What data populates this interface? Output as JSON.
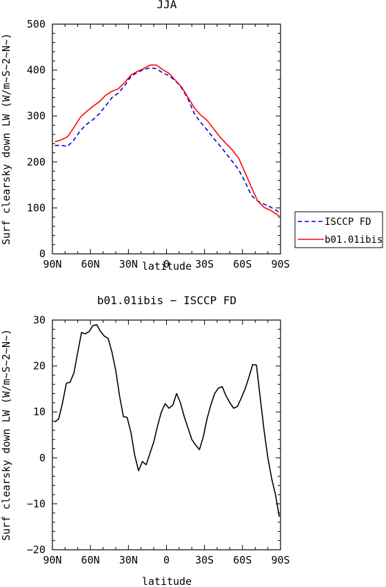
{
  "chart_data": [
    {
      "type": "line",
      "title": "JJA",
      "xlabel": "latitude",
      "ylabel": "Surf clearsky down LW (W/m~S~2~N~)",
      "xlim": [
        90,
        -90
      ],
      "ylim": [
        0,
        500
      ],
      "x_ticks": [
        90,
        60,
        30,
        0,
        -30,
        -60,
        -90
      ],
      "x_tick_labels": [
        "90N",
        "60N",
        "30N",
        "0",
        "30S",
        "60S",
        "90S"
      ],
      "y_ticks": [
        0,
        100,
        200,
        300,
        400,
        500
      ],
      "y_tick_labels": [
        "0",
        "100",
        "200",
        "300",
        "400",
        "500"
      ],
      "legend_position": "outside-right",
      "series": [
        {
          "name": "ISCCP FD",
          "color": "#0000cc",
          "dash": "dashed",
          "x": [
            88,
            83,
            78,
            73,
            68,
            63,
            58,
            53,
            48,
            43,
            38,
            33,
            28,
            23,
            18,
            13,
            8,
            3,
            -2,
            -7,
            -12,
            -17,
            -22,
            -27,
            -32,
            -37,
            -42,
            -47,
            -52,
            -57,
            -62,
            -67,
            -72,
            -77,
            -82,
            -87,
            -89
          ],
          "y": [
            236,
            236,
            234,
            248,
            268,
            282,
            292,
            305,
            322,
            340,
            350,
            366,
            386,
            395,
            401,
            405,
            403,
            394,
            388,
            377,
            361,
            337,
            305,
            286,
            270,
            252,
            236,
            219,
            201,
            183,
            157,
            127,
            115,
            108,
            102,
            94,
            90
          ]
        },
        {
          "name": "b01.01ibis",
          "color": "#ff0000",
          "dash": "solid",
          "x": [
            88,
            83,
            78,
            73,
            68,
            63,
            58,
            53,
            48,
            43,
            38,
            33,
            28,
            23,
            18,
            13,
            8,
            3,
            -2,
            -7,
            -12,
            -17,
            -22,
            -27,
            -32,
            -37,
            -42,
            -47,
            -52,
            -57,
            -62,
            -67,
            -72,
            -77,
            -82,
            -87,
            -89
          ],
          "y": [
            244,
            248,
            255,
            275,
            297,
            310,
            321,
            331,
            345,
            354,
            359,
            373,
            389,
            397,
            403,
            411,
            411,
            401,
            393,
            378,
            363,
            340,
            318,
            302,
            291,
            273,
            255,
            240,
            226,
            208,
            177,
            145,
            115,
            101,
            95,
            86,
            82
          ]
        }
      ]
    },
    {
      "type": "line",
      "title": "b01.01ibis − ISCCP FD",
      "xlabel": "latitude",
      "ylabel": "Surf clearsky down LW (W/m~S~2~N~)",
      "xlim": [
        90,
        -90
      ],
      "ylim": [
        -20,
        30
      ],
      "x_ticks": [
        90,
        60,
        30,
        0,
        -30,
        -60,
        -90
      ],
      "x_tick_labels": [
        "90N",
        "60N",
        "30N",
        "0",
        "30S",
        "60S",
        "90S"
      ],
      "y_ticks": [
        -20,
        -10,
        0,
        10,
        20,
        30
      ],
      "y_tick_labels": [
        "−20",
        "−10",
        "0",
        "10",
        "20",
        "30"
      ],
      "series": [
        {
          "color": "#000000",
          "dash": "solid",
          "x": [
            88,
            85,
            82,
            79,
            76,
            73,
            70,
            67,
            64,
            61,
            58,
            55,
            52,
            49,
            46,
            43,
            40,
            37,
            34,
            31,
            28,
            25,
            22,
            19,
            16,
            13,
            10,
            7,
            4,
            1,
            -2,
            -5,
            -8,
            -11,
            -14,
            -17,
            -20,
            -23,
            -26,
            -29,
            -32,
            -35,
            -38,
            -41,
            -44,
            -47,
            -50,
            -53,
            -56,
            -59,
            -62,
            -65,
            -68,
            -71,
            -74,
            -77,
            -80,
            -83,
            -86,
            -89
          ],
          "y": [
            7.8,
            8.5,
            12,
            16.2,
            16.5,
            18.5,
            23,
            27.3,
            27,
            27.5,
            28.8,
            29,
            27.5,
            26.5,
            26,
            23,
            19,
            13.5,
            9,
            8.8,
            5.5,
            0.5,
            -2.8,
            -0.8,
            -1.5,
            1,
            3.5,
            7,
            10,
            11.8,
            10.8,
            11.5,
            14,
            12,
            9,
            6.5,
            4,
            2.8,
            1.8,
            4.5,
            8.5,
            11.5,
            14,
            15.2,
            15.5,
            13.5,
            12,
            10.8,
            11.2,
            13,
            15,
            17.5,
            20.3,
            20.2,
            13,
            6,
            0,
            -4.5,
            -8,
            -12.8
          ]
        }
      ]
    }
  ]
}
